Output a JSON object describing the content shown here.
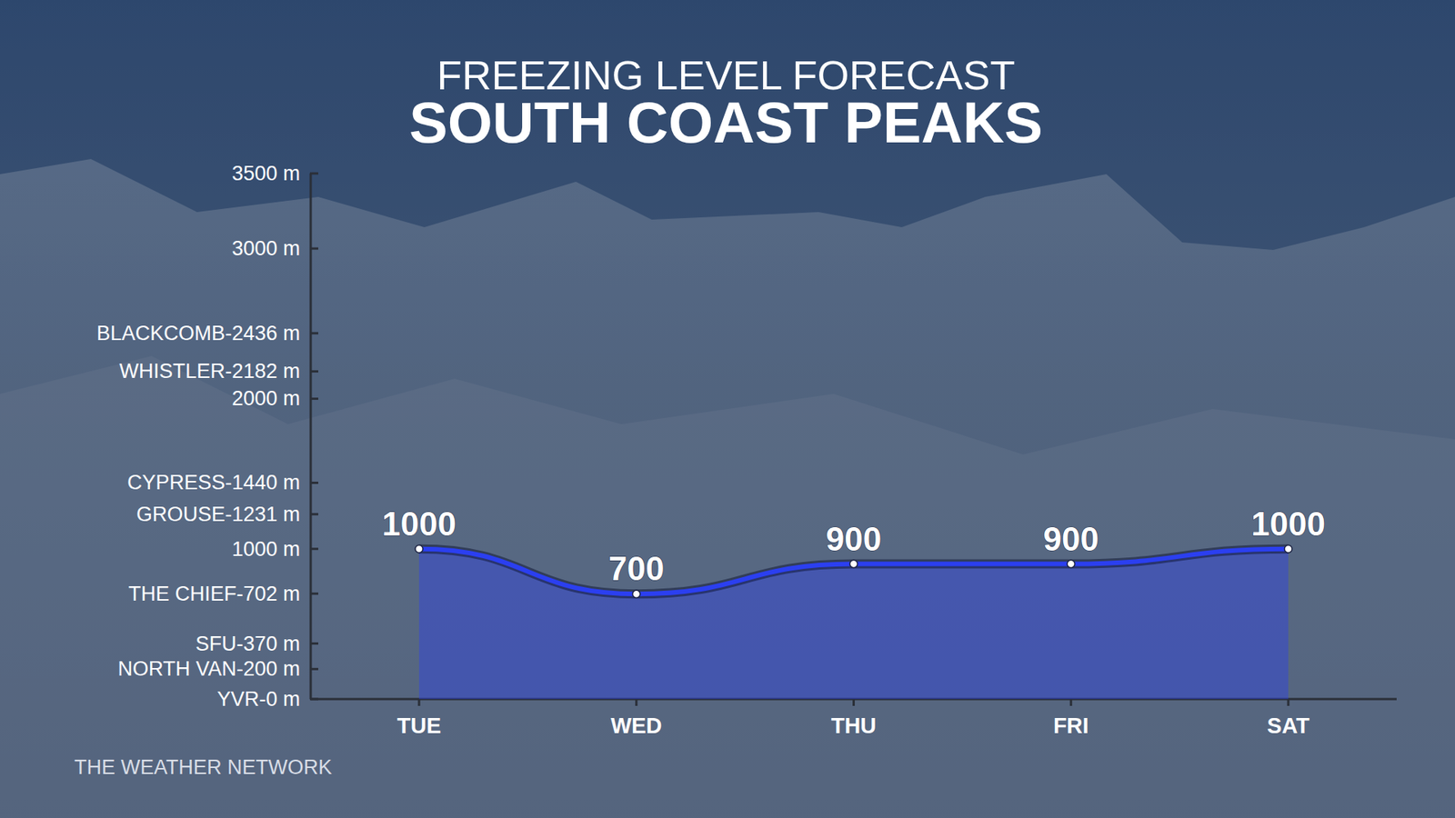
{
  "chart_data": {
    "type": "area",
    "title": "FREEZING LEVEL FORECAST",
    "subtitle": "SOUTH COAST PEAKS",
    "source": "THE WEATHER NETWORK",
    "categories": [
      "TUE",
      "WED",
      "THU",
      "FRI",
      "SAT"
    ],
    "values": [
      1000,
      700,
      900,
      900,
      1000
    ],
    "color": "#2b3ff0",
    "ylim": [
      0,
      3500
    ],
    "yticks": [
      {
        "value": 0,
        "label": "YVR-0 m"
      },
      {
        "value": 200,
        "label": "NORTH VAN-200 m"
      },
      {
        "value": 370,
        "label": "SFU-370 m"
      },
      {
        "value": 702,
        "label": "THE CHIEF-702 m"
      },
      {
        "value": 1000,
        "label": "1000 m"
      },
      {
        "value": 1231,
        "label": "GROUSE-1231 m"
      },
      {
        "value": 1440,
        "label": "CYPRESS-1440 m"
      },
      {
        "value": 2000,
        "label": "2000 m"
      },
      {
        "value": 2182,
        "label": "WHISTLER-2182 m"
      },
      {
        "value": 2436,
        "label": "BLACKCOMB-2436 m"
      },
      {
        "value": 3000,
        "label": "3000 m"
      },
      {
        "value": 3500,
        "label": "3500 m"
      }
    ],
    "grid": false,
    "data_labels": true
  }
}
